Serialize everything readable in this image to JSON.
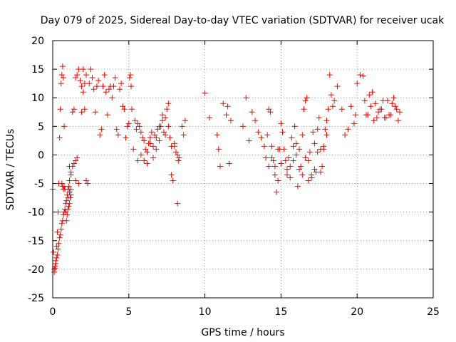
{
  "chart_data": {
    "type": "scatter",
    "title": "Day 079 of 2025, Sidereal Day-to-day VTEC variation (SDTVAR) for receiver ucak",
    "xlabel": "GPS time / hours",
    "ylabel": "SDTVAR / TECUs",
    "xlim": [
      0,
      25
    ],
    "ylim": [
      -25,
      20
    ],
    "xticks": [
      0,
      5,
      10,
      15,
      20,
      25
    ],
    "xtick_labels": [
      "0",
      "5",
      "10",
      "15",
      "20",
      "25"
    ],
    "yticks": [
      -25,
      -20,
      -15,
      -10,
      -5,
      0,
      5,
      10,
      15,
      20
    ],
    "ytick_labels": [
      "-25",
      "-20",
      "-15",
      "-10",
      "-5",
      "0",
      "5",
      "10",
      "15",
      "20"
    ],
    "grid": true,
    "marker": "+",
    "series": [
      {
        "name": "SDTVAR",
        "color": "#ff0000",
        "x": [
          0.0,
          0.05,
          0.1,
          0.15,
          0.2,
          0.25,
          0.3,
          0.35,
          0.4,
          0.45,
          0.5,
          0.55,
          0.6,
          0.65,
          0.7,
          0.75,
          0.8,
          0.85,
          0.9,
          0.95,
          1.0,
          1.05,
          1.1,
          1.15,
          1.2,
          1.3,
          1.4,
          1.5,
          1.6,
          1.7,
          1.8,
          1.9,
          2.0,
          2.1,
          2.2,
          0.1,
          0.2,
          0.3,
          0.4,
          0.5,
          0.6,
          0.7,
          0.8,
          0.9,
          1.0,
          1.1,
          1.2,
          0.15,
          0.25,
          0.35,
          0.45,
          0.55,
          0.65,
          0.75,
          0.85,
          0.95,
          1.0,
          1.05,
          1.1,
          1.2,
          1.3,
          1.4,
          1.5,
          1.6,
          0.6,
          0.65,
          0.7,
          0.75,
          0.8,
          1.1,
          1.2,
          1.5,
          1.7,
          1.9,
          2.0,
          2.1,
          2.2,
          2.3,
          2.4,
          2.5,
          2.6,
          2.7,
          2.8,
          2.9,
          3.0,
          3.1,
          3.2,
          3.3,
          3.4,
          3.5,
          3.6,
          3.7,
          3.8,
          3.9,
          4.0,
          4.1,
          4.2,
          4.3,
          4.4,
          4.5,
          4.6,
          4.7,
          4.8,
          4.9,
          5.0,
          5.05,
          5.1,
          5.15,
          5.2,
          5.3,
          5.4,
          5.5,
          5.6,
          5.7,
          5.8,
          5.9,
          6.0,
          6.1,
          6.2,
          6.3,
          6.4,
          6.5,
          6.6,
          6.7,
          6.8,
          6.9,
          7.0,
          7.1,
          7.2,
          7.3,
          7.4,
          7.5,
          7.6,
          7.7,
          7.8,
          7.9,
          8.0,
          8.1,
          8.2,
          8.3,
          8.5,
          8.6,
          8.7,
          5.6,
          5.8,
          6.0,
          6.2,
          6.4,
          6.6,
          6.8,
          7.0,
          7.2,
          7.4,
          7.6,
          7.8,
          8.0,
          8.2,
          8.25,
          10.0,
          10.3,
          10.8,
          10.9,
          11.0,
          11.2,
          11.4,
          11.5,
          11.6,
          11.7,
          12.5,
          12.7,
          12.9,
          13.1,
          13.3,
          13.5,
          13.7,
          13.9,
          14.0,
          14.1,
          14.2,
          14.3,
          14.4,
          14.5,
          14.6,
          14.7,
          14.8,
          14.9,
          15.0,
          15.1,
          15.2,
          15.3,
          15.4,
          15.5,
          15.6,
          15.7,
          15.8,
          15.9,
          16.0,
          16.1,
          16.2,
          16.3,
          16.4,
          16.5,
          16.6,
          16.7,
          16.8,
          16.9,
          17.0,
          17.1,
          17.2,
          17.3,
          17.4,
          17.5,
          17.6,
          17.7,
          17.8,
          17.9,
          18.0,
          18.1,
          18.2,
          18.3,
          18.4,
          18.5,
          18.7,
          19.0,
          19.2,
          19.4,
          19.6,
          19.8,
          19.9,
          20.0,
          20.2,
          20.4,
          20.6,
          20.8,
          21.0,
          21.2,
          21.4,
          21.6,
          21.8,
          22.0,
          22.2,
          22.4,
          22.6,
          22.8,
          14.2,
          14.4,
          14.6,
          14.8,
          15.0,
          15.4,
          15.6,
          15.8,
          16.0,
          16.2,
          16.4,
          16.6,
          16.8,
          17.0,
          17.2,
          17.4,
          17.6,
          17.8,
          18.0,
          20.5,
          20.7,
          20.9,
          21.1,
          21.3,
          21.5,
          21.7,
          21.9,
          22.1,
          22.3,
          22.5,
          22.7
        ],
        "y": [
          -6.0,
          -17.0,
          -20.5,
          -19.8,
          -18.5,
          -16.0,
          -13.5,
          -10.0,
          -5.0,
          3.0,
          8.0,
          12.5,
          14.0,
          15.5,
          13.5,
          5.0,
          -6.0,
          -10.0,
          -11.5,
          -10.5,
          -9.5,
          -9.0,
          -8.5,
          -7.5,
          -7.0,
          7.5,
          8.0,
          13.5,
          14.0,
          15.0,
          13.0,
          12.0,
          11.0,
          12.5,
          14.0,
          -20.0,
          -19.0,
          -17.5,
          -15.5,
          -14.0,
          -12.0,
          -10.5,
          -9.5,
          -8.0,
          -7.5,
          -6.5,
          -6.0,
          -19.5,
          -18.0,
          -16.5,
          -14.5,
          -13.0,
          -11.5,
          -10.0,
          -8.5,
          -7.0,
          -6.0,
          -5.5,
          -4.5,
          -3.0,
          -2.0,
          -1.5,
          -1.0,
          -0.5,
          -5.0,
          -5.5,
          -6.0,
          -5.5,
          -6.0,
          -2.0,
          -3.5,
          -4.5,
          -5.0,
          7.5,
          15.0,
          8.0,
          -4.5,
          -5.0,
          12.5,
          15.0,
          13.5,
          11.5,
          7.5,
          12.0,
          13.0,
          3.5,
          4.5,
          12.0,
          14.0,
          11.0,
          7.0,
          11.5,
          12.0,
          10.0,
          12.0,
          13.5,
          4.5,
          3.5,
          11.5,
          12.5,
          8.5,
          8.0,
          3.0,
          5.0,
          5.5,
          13.5,
          14.0,
          12.0,
          8.0,
          1.0,
          6.0,
          4.5,
          5.5,
          5.0,
          4.0,
          3.0,
          2.5,
          1.0,
          -1.5,
          2.0,
          3.0,
          4.0,
          1.5,
          3.5,
          3.0,
          4.5,
          2.5,
          5.0,
          6.0,
          4.0,
          3.5,
          8.0,
          9.0,
          3.0,
          -3.5,
          -4.5,
          1.5,
          0.5,
          -8.5,
          -0.5,
          5.0,
          3.5,
          6.0,
          -1.0,
          0.0,
          -1.0,
          0.5,
          2.0,
          -0.5,
          1.0,
          5.0,
          7.0,
          6.5,
          5.0,
          1.5,
          2.0,
          0.0,
          -1.0,
          10.8,
          6.5,
          3.5,
          1.0,
          -2.0,
          9.0,
          7.0,
          8.5,
          -1.5,
          6.0,
          5.0,
          10.0,
          2.5,
          7.5,
          6.0,
          4.0,
          3.0,
          1.5,
          -0.5,
          3.5,
          8.0,
          7.5,
          1.5,
          -1.0,
          -2.0,
          -6.5,
          -4.5,
          1.0,
          5.5,
          4.0,
          1.0,
          -1.0,
          -3.5,
          -0.5,
          -2.0,
          3.0,
          -1.0,
          5.0,
          2.0,
          -5.5,
          1.0,
          -2.0,
          3.5,
          8.0,
          9.5,
          10.0,
          -4.5,
          0.5,
          -3.5,
          4.0,
          2.0,
          -3.0,
          4.5,
          6.5,
          1.0,
          -2.0,
          1.5,
          4.5,
          6.0,
          8.0,
          14.0,
          10.5,
          8.5,
          9.5,
          12.0,
          8.0,
          3.5,
          4.5,
          8.5,
          5.5,
          7.0,
          12.5,
          14.0,
          13.8,
          7.0,
          10.5,
          11.0,
          9.0,
          7.5,
          8.0,
          6.5,
          9.5,
          7.0,
          10.0,
          8.0,
          7.5,
          -2.0,
          -0.5,
          -3.5,
          1.0,
          -1.5,
          -2.5,
          -4.0,
          1.5,
          0.0,
          -2.5,
          -3.5,
          -0.5,
          -1.0,
          -4.0,
          -2.5,
          0.5,
          -3.0,
          1.0,
          3.5,
          9.5,
          7.0,
          8.5,
          6.0,
          6.5,
          8.0,
          9.5,
          6.5,
          7.0,
          9.0,
          8.5,
          6.0
        ]
      }
    ]
  }
}
